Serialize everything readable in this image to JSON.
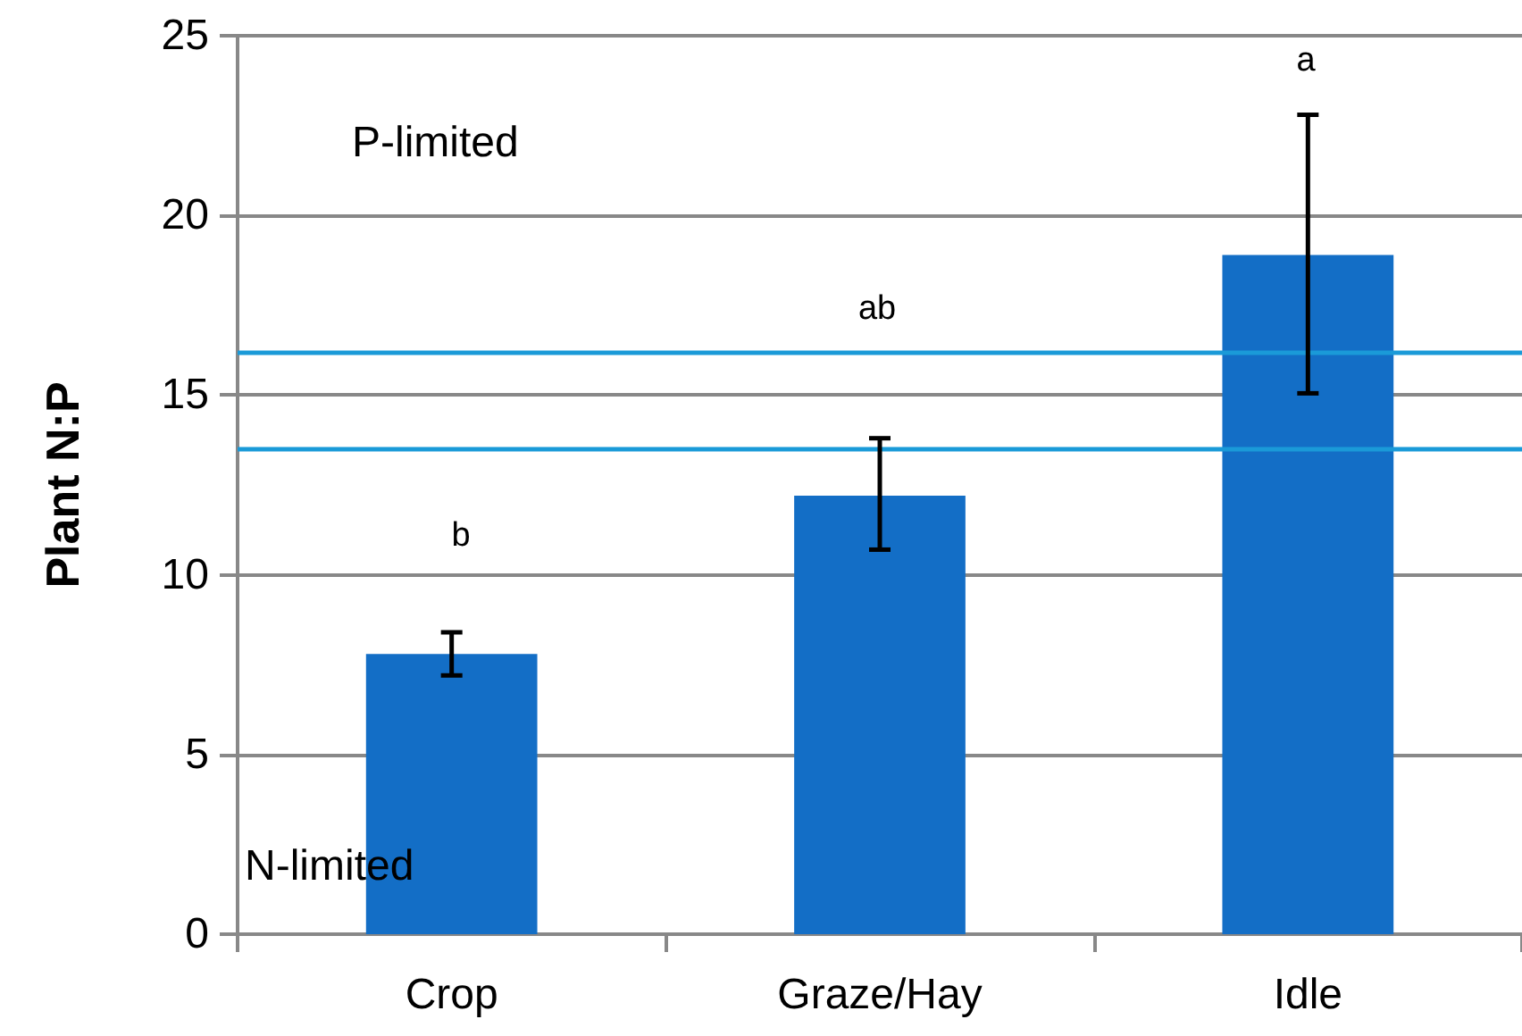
{
  "chart_data": {
    "type": "bar",
    "ylabel": "Plant N:P",
    "categories": [
      "Crop",
      "Graze/Hay",
      "Idle"
    ],
    "values": [
      7.8,
      12.2,
      18.9
    ],
    "color": "#136ec6",
    "errors": [
      [
        7.2,
        8.4
      ],
      [
        10.7,
        13.8
      ],
      [
        15.05,
        22.8
      ]
    ],
    "ylim": [
      0,
      25
    ],
    "yticks": [
      0,
      5,
      10,
      15,
      20,
      25
    ],
    "grid": "y",
    "ref_lines": [
      {
        "axis": "y",
        "value": 16.2,
        "color": "#1a9ad8"
      },
      {
        "axis": "y",
        "value": 13.5,
        "color": "#1a9ad8"
      }
    ],
    "annotations": [
      "b",
      "ab",
      "a",
      "P-limited",
      "N-limited"
    ]
  }
}
